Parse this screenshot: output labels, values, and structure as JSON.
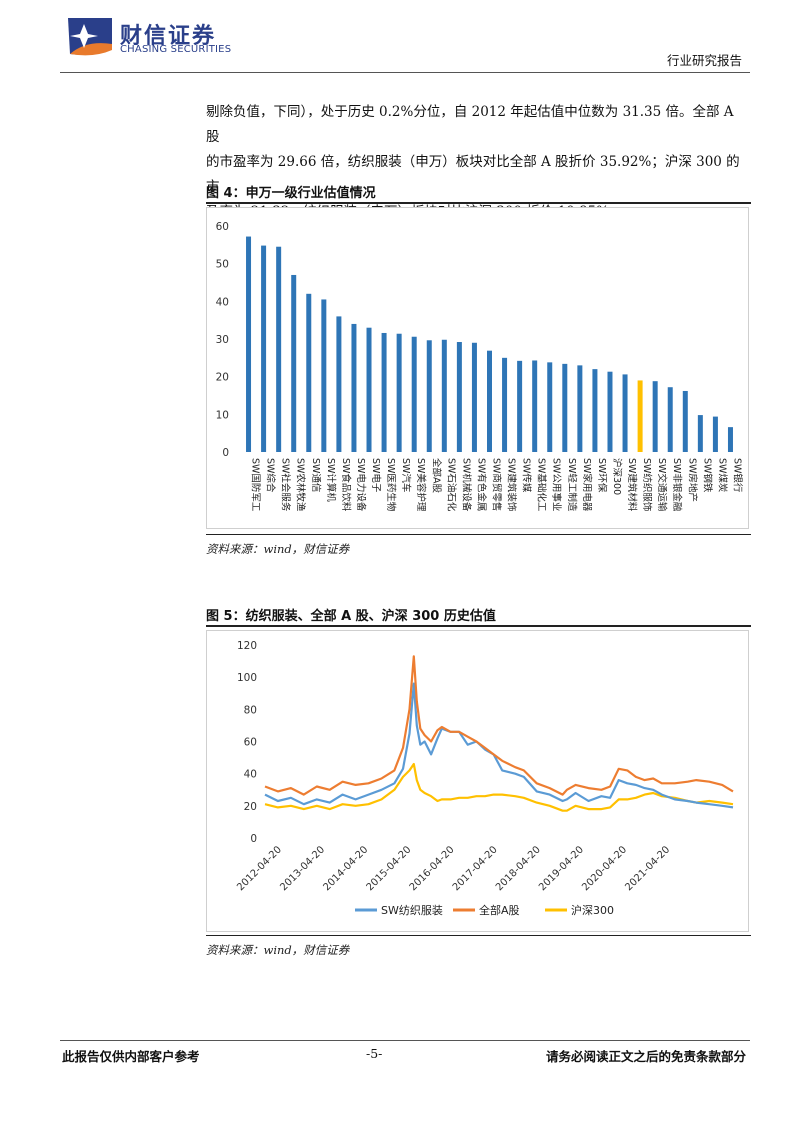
{
  "header": {
    "company_cn": "财信证券",
    "company_en": "CHASING SECURITIES",
    "report_type": "行业研究报告"
  },
  "body": {
    "lines": [
      "剔除负值，下同），处于历史 0.2%分位，自 2012 年起估值中位数为 31.35 倍。全部 A 股",
      "的市盈率为 29.66 倍，纺织服装（申万）板块对比全部 A 股折价 35.92%；沪深 300 的市",
      "盈率为 21.32，纺织服装（申万）板块对比沪深 300 折价 10.85%。"
    ]
  },
  "figure4": {
    "caption": "图 4：申万一级行业估值情况",
    "source": "资料来源：wind，财信证券"
  },
  "figure5": {
    "caption": "图 5：纺织服装、全部 A 股、沪深 300 历史估值",
    "source": "资料来源：wind，财信证券"
  },
  "colors": {
    "bar_default": "#2e75b6",
    "bar_highlight": "#ffc000",
    "line_textile": "#5b9bd5",
    "line_all_a": "#ed7d31",
    "line_hs300": "#ffc000"
  },
  "chart_data": [
    {
      "type": "bar",
      "title": "",
      "categories": [
        "SW国防军工",
        "SW综合",
        "SW社会服务",
        "SW农林牧渔",
        "SW通信",
        "SW计算机",
        "SW食品饮料",
        "SW电力设备",
        "SW电子",
        "SW医药生物",
        "SW汽车",
        "SW美容护理",
        "全部A股",
        "SW石油石化",
        "SW机械设备",
        "SW有色金属",
        "SW商贸零售",
        "SW建筑装饰",
        "SW传媒",
        "SW基础化工",
        "SW公用事业",
        "SW轻工制造",
        "SW家用电器",
        "SW环保",
        "沪深300",
        "SW建筑材料",
        "SW纺织服饰",
        "SW交通运输",
        "SW非银金融",
        "SW房地产",
        "SW钢铁",
        "SW煤炭",
        "SW银行"
      ],
      "values": [
        57.2,
        54.8,
        54.5,
        47,
        42,
        40.5,
        36,
        34,
        33,
        31.6,
        31.4,
        30.6,
        29.66,
        29.8,
        29.2,
        29,
        26.9,
        25,
        24.2,
        24.3,
        23.8,
        23.4,
        23,
        22,
        21.32,
        20.6,
        19.0,
        18.8,
        17.2,
        16.2,
        9.8,
        9.4,
        6.6
      ],
      "highlight_category": "SW纺织服饰",
      "ylim": [
        0,
        60
      ],
      "yticks": [
        0,
        10,
        20,
        30,
        40,
        50,
        60
      ],
      "grid": false
    },
    {
      "type": "line",
      "title": "",
      "xticks": [
        "2012-04-20",
        "2013-04-20",
        "2014-04-20",
        "2015-04-20",
        "2016-04-20",
        "2017-04-20",
        "2018-04-20",
        "2019-04-20",
        "2020-04-20",
        "2021-04-20"
      ],
      "ylim": [
        0,
        120
      ],
      "yticks": [
        0,
        20,
        40,
        60,
        80,
        100,
        120
      ],
      "legend_position": "bottom",
      "x_range": [
        2012.0,
        2022.85
      ],
      "series": [
        {
          "name": "SW纺织服装",
          "x": [
            2012.0,
            2012.3,
            2012.6,
            2012.9,
            2013.2,
            2013.5,
            2013.8,
            2014.1,
            2014.4,
            2014.7,
            2015.0,
            2015.2,
            2015.35,
            2015.45,
            2015.52,
            2015.6,
            2015.7,
            2015.85,
            2016.0,
            2016.1,
            2016.3,
            2016.5,
            2016.7,
            2016.9,
            2017.1,
            2017.3,
            2017.5,
            2017.8,
            2018.0,
            2018.3,
            2018.6,
            2018.9,
            2019.0,
            2019.2,
            2019.5,
            2019.8,
            2020.0,
            2020.2,
            2020.4,
            2020.6,
            2020.8,
            2021.0,
            2021.2,
            2021.5,
            2021.8,
            2022.0,
            2022.3,
            2022.6,
            2022.85
          ],
          "values": [
            27,
            23,
            25,
            21,
            24,
            22,
            27,
            24,
            27,
            30,
            34,
            43,
            65,
            96,
            70,
            58,
            60,
            52,
            62,
            68,
            66,
            66,
            58,
            60,
            55,
            52,
            42,
            40,
            38,
            29,
            27,
            23,
            24,
            28,
            23,
            26,
            25,
            36,
            34,
            33,
            31,
            30,
            27,
            24,
            23,
            22,
            21,
            20,
            19
          ]
        },
        {
          "name": "全部A股",
          "x": [
            2012.0,
            2012.3,
            2012.6,
            2012.9,
            2013.2,
            2013.5,
            2013.8,
            2014.1,
            2014.4,
            2014.7,
            2015.0,
            2015.2,
            2015.35,
            2015.45,
            2015.52,
            2015.6,
            2015.7,
            2015.85,
            2016.0,
            2016.1,
            2016.3,
            2016.5,
            2016.7,
            2016.9,
            2017.1,
            2017.3,
            2017.5,
            2017.8,
            2018.0,
            2018.3,
            2018.6,
            2018.9,
            2019.0,
            2019.2,
            2019.5,
            2019.8,
            2020.0,
            2020.2,
            2020.4,
            2020.6,
            2020.8,
            2021.0,
            2021.2,
            2021.5,
            2021.8,
            2022.0,
            2022.3,
            2022.6,
            2022.85
          ],
          "values": [
            32,
            29,
            31,
            27,
            32,
            30,
            35,
            33,
            34,
            37,
            42,
            56,
            80,
            113,
            85,
            68,
            64,
            60,
            67,
            69,
            66,
            66,
            63,
            60,
            56,
            52,
            48,
            44,
            42,
            34,
            31,
            27,
            30,
            33,
            31,
            30,
            32,
            43,
            42,
            38,
            36,
            37,
            34,
            34,
            35,
            36,
            35,
            33,
            29
          ]
        },
        {
          "name": "沪深300",
          "x": [
            2012.0,
            2012.3,
            2012.6,
            2012.9,
            2013.2,
            2013.5,
            2013.8,
            2014.1,
            2014.4,
            2014.7,
            2015.0,
            2015.2,
            2015.35,
            2015.45,
            2015.52,
            2015.6,
            2015.7,
            2015.85,
            2016.0,
            2016.1,
            2016.3,
            2016.5,
            2016.7,
            2016.9,
            2017.1,
            2017.3,
            2017.5,
            2017.8,
            2018.0,
            2018.3,
            2018.6,
            2018.9,
            2019.0,
            2019.2,
            2019.5,
            2019.8,
            2020.0,
            2020.2,
            2020.4,
            2020.6,
            2020.8,
            2021.0,
            2021.2,
            2021.5,
            2021.8,
            2022.0,
            2022.3,
            2022.6,
            2022.85
          ],
          "values": [
            21,
            19,
            20,
            18,
            20,
            18,
            21,
            20,
            21,
            24,
            30,
            38,
            42,
            46,
            36,
            30,
            28,
            26,
            23,
            24,
            24,
            25,
            25,
            26,
            26,
            27,
            27,
            26,
            25,
            22,
            20,
            17,
            17,
            20,
            18,
            18,
            19,
            24,
            24,
            25,
            27,
            28,
            26,
            25,
            23,
            22,
            23,
            22,
            21
          ]
        }
      ]
    }
  ]
}
